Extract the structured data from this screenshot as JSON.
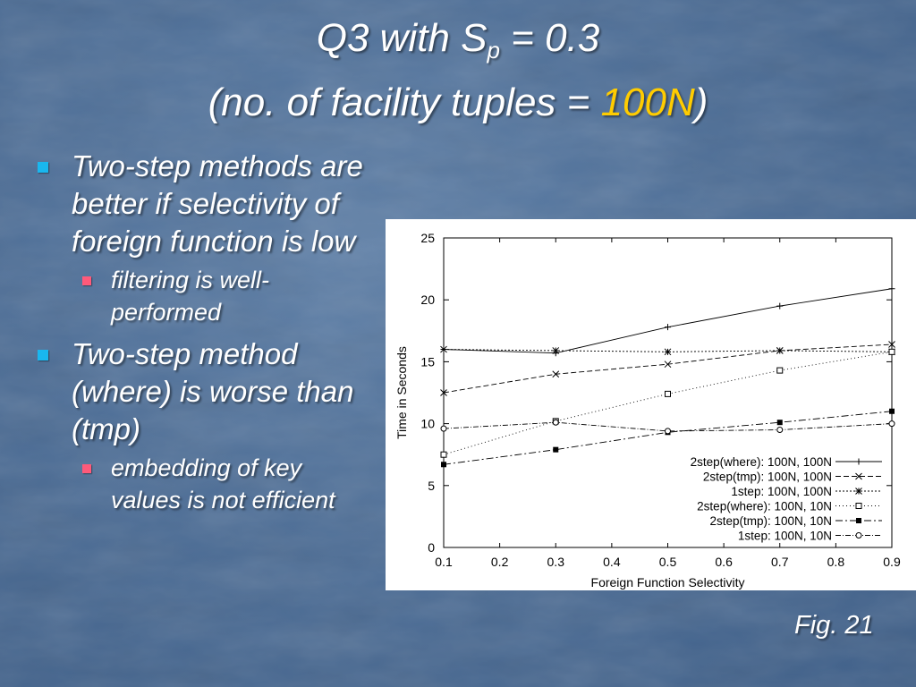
{
  "title": {
    "line1_prefix": "Q3 with S",
    "line1_sub": "p",
    "line1_suffix": " = 0.3",
    "line2_prefix": "(no. of facility tuples = ",
    "line2_highlight": "100N",
    "line2_suffix": ")",
    "highlight_color": "#ffcc00"
  },
  "bullets": [
    {
      "text": "Two-step methods are better if selectivity of foreign function is low",
      "sub": [
        "filtering is well-performed"
      ]
    },
    {
      "text": "Two-step method (where) is worse than (tmp)",
      "sub": [
        "embedding of key values is not efficient"
      ]
    }
  ],
  "figure_label": "Fig. 21",
  "chart_data": {
    "type": "line",
    "xlabel": "Foreign Function Selectivity",
    "ylabel": "Time in Seconds",
    "xlim": [
      0.1,
      0.9
    ],
    "ylim": [
      0,
      25
    ],
    "xticks": [
      "0.1",
      "0.2",
      "0.3",
      "0.4",
      "0.5",
      "0.6",
      "0.7",
      "0.8",
      "0.9"
    ],
    "yticks": [
      "0",
      "5",
      "10",
      "15",
      "20",
      "25"
    ],
    "legend_position": "bottom-right",
    "grid": false,
    "series": [
      {
        "name": "2step(where): 100N, 100N",
        "marker": "plus",
        "dash": "",
        "x": [
          0.1,
          0.3,
          0.5,
          0.7,
          0.9
        ],
        "y": [
          16.0,
          15.7,
          17.8,
          19.5,
          20.9
        ]
      },
      {
        "name": "2step(tmp): 100N, 100N",
        "marker": "cross",
        "dash": "6,3",
        "x": [
          0.1,
          0.3,
          0.5,
          0.7,
          0.9
        ],
        "y": [
          12.5,
          14.0,
          14.8,
          15.9,
          16.4
        ]
      },
      {
        "name": "1step: 100N, 100N",
        "marker": "star",
        "dash": "2,2",
        "x": [
          0.1,
          0.3,
          0.5,
          0.7,
          0.9
        ],
        "y": [
          16.0,
          15.9,
          15.8,
          15.9,
          15.8
        ]
      },
      {
        "name": "2step(where): 100N, 10N",
        "marker": "square-open",
        "dash": "1,3",
        "x": [
          0.1,
          0.3,
          0.5,
          0.7,
          0.9
        ],
        "y": [
          7.5,
          10.2,
          12.4,
          14.3,
          15.8
        ]
      },
      {
        "name": "2step(tmp): 100N, 10N",
        "marker": "square-filled",
        "dash": "8,3,2,3",
        "x": [
          0.1,
          0.3,
          0.5,
          0.7,
          0.9
        ],
        "y": [
          6.7,
          7.9,
          9.3,
          10.1,
          11.0
        ]
      },
      {
        "name": "1step: 100N, 10N",
        "marker": "circle-open",
        "dash": "6,2,1,2",
        "x": [
          0.1,
          0.3,
          0.5,
          0.7,
          0.9
        ],
        "y": [
          9.6,
          10.1,
          9.4,
          9.5,
          10.0
        ]
      }
    ]
  }
}
